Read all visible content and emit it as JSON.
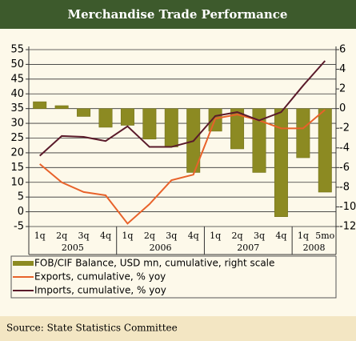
{
  "chart_data": {
    "type": "bar",
    "title": "Merchandise Trade Performance",
    "source": "Source: State Statistics Committee",
    "categories": [
      "1q",
      "2q",
      "3q",
      "4q",
      "1q",
      "2q",
      "3q",
      "4q",
      "1q",
      "2q",
      "3q",
      "4q",
      "1q",
      "5mo"
    ],
    "x_groups": [
      {
        "label": "2005",
        "span": 4
      },
      {
        "label": "2006",
        "span": 4
      },
      {
        "label": "2007",
        "span": 4
      },
      {
        "label": "2008",
        "span": 2
      }
    ],
    "ylim": [
      -5,
      55
    ],
    "yticks": [
      -5,
      0,
      5,
      10,
      15,
      20,
      25,
      30,
      35,
      40,
      45,
      50,
      55
    ],
    "y2lim": [
      -12,
      6
    ],
    "y2ticks": [
      -12,
      -10,
      -8,
      -6,
      -4,
      -2,
      0,
      2,
      4,
      6
    ],
    "grid": true,
    "series": [
      {
        "name": "FOB/CIF Balance, USD mn, cumulative, right scale",
        "type": "bar",
        "axis": "y2",
        "color": "#8c8a22",
        "values": [
          0.7,
          0.3,
          -0.8,
          -1.9,
          -1.7,
          -3.1,
          -3.9,
          -6.5,
          -2.3,
          -4.1,
          -6.5,
          -11,
          -5,
          -8.5
        ]
      },
      {
        "name": "Exports, cumulative, % yoy",
        "type": "line",
        "color": "#e8622a",
        "values": [
          16.2,
          10,
          6.7,
          5.6,
          -4,
          2.6,
          10.7,
          12.6,
          31.6,
          33,
          31,
          28.3,
          28.3,
          34.6
        ]
      },
      {
        "name": "Imports, cumulative, % yoy",
        "type": "line",
        "color": "#5a1a2a",
        "values": [
          19,
          25.7,
          25.4,
          24,
          29,
          22,
          22,
          24,
          32.5,
          33.8,
          31,
          33.8,
          42.8,
          51.2
        ]
      }
    ]
  }
}
